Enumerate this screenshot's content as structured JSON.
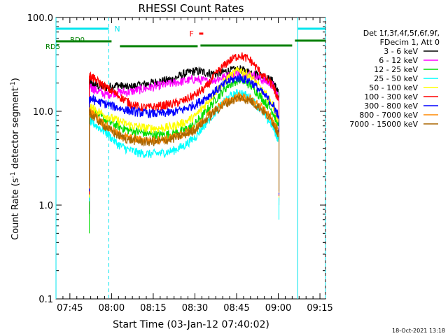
{
  "chart_data": {
    "type": "line",
    "title": "RHESSI Count Rates",
    "xlabel": "Start Time (03-Jan-12 07:40:02)",
    "ylabel_parts": [
      "Count Rate (s",
      "-1",
      " detector segment",
      "-1",
      ")"
    ],
    "yscale": "log",
    "ylim": [
      0.1,
      100
    ],
    "y_ticks": [
      {
        "value": 100,
        "label": "100.0"
      },
      {
        "value": 10,
        "label": "10.0"
      },
      {
        "value": 1,
        "label": "1.0"
      },
      {
        "value": 0.1,
        "label": "0.1"
      }
    ],
    "xlim_minutes_after_0740": [
      0,
      97
    ],
    "x_ticks": [
      {
        "minutes": 5,
        "label": "07:45"
      },
      {
        "minutes": 20,
        "label": "08:00"
      },
      {
        "minutes": 35,
        "label": "08:15"
      },
      {
        "minutes": 50,
        "label": "08:30"
      },
      {
        "minutes": 65,
        "label": "08:45"
      },
      {
        "minutes": 80,
        "label": "09:00"
      },
      {
        "minutes": 95,
        "label": "09:15"
      }
    ],
    "legend_header": [
      "Det 1f,3f,4f,5f,6f,9f,",
      "FDecim 1, Att 0"
    ],
    "x_minutes": [
      12,
      14,
      18,
      22,
      26,
      30,
      34,
      38,
      42,
      46,
      50,
      54,
      58,
      62,
      66,
      70,
      74,
      78,
      80
    ],
    "series": [
      {
        "name": "3 - 6 keV",
        "color": "#000000",
        "values": [
          20,
          19,
          18,
          19,
          18,
          19,
          20,
          21,
          22,
          25,
          27,
          26,
          25,
          27,
          28,
          26,
          24,
          21,
          16
        ]
      },
      {
        "name": "6 - 12 keV",
        "color": "#ff00ff",
        "values": [
          18,
          17,
          15,
          16,
          16,
          17,
          18,
          19,
          20,
          21,
          22,
          21,
          22,
          24,
          26,
          25,
          22,
          19,
          14
        ]
      },
      {
        "name": "12 - 25 keV",
        "color": "#00dd00",
        "values": [
          10,
          9.5,
          8,
          7,
          6.3,
          6,
          5.7,
          5.6,
          5.8,
          6.3,
          7.3,
          10,
          14,
          19,
          22,
          19,
          14,
          10,
          7
        ]
      },
      {
        "name": "25 - 50 keV",
        "color": "#00ffff",
        "values": [
          8,
          7.2,
          6,
          4.5,
          3.9,
          3.6,
          3.5,
          3.6,
          3.8,
          4.3,
          5.3,
          7.5,
          10.5,
          14,
          16,
          14,
          10,
          7,
          5
        ]
      },
      {
        "name": "50 - 100 keV",
        "color": "#ffff00",
        "values": [
          11,
          10.5,
          9,
          8,
          7.2,
          6.8,
          6.6,
          6.6,
          6.9,
          7.6,
          8.8,
          12,
          17,
          23,
          28,
          24,
          17,
          12,
          8
        ]
      },
      {
        "name": "100 - 300 keV",
        "color": "#ff0000",
        "values": [
          24,
          22,
          18,
          15,
          12.5,
          11,
          11,
          11.5,
          12,
          13,
          15,
          18,
          26,
          34,
          40,
          35,
          25,
          19,
          13
        ]
      },
      {
        "name": "300 - 800 keV",
        "color": "#0000ff",
        "values": [
          14,
          13,
          12,
          11,
          10.2,
          9.7,
          9.5,
          9.5,
          9.8,
          10.5,
          11.8,
          14,
          17,
          21,
          23,
          21,
          16,
          12,
          9
        ]
      },
      {
        "name": "800 - 7000 keV",
        "color": "#ff8800",
        "values": [
          10,
          9,
          7,
          5.8,
          5.2,
          5,
          4.9,
          5,
          5.3,
          5.8,
          6.6,
          8.5,
          11,
          13,
          14.5,
          13.5,
          11,
          8,
          6
        ]
      },
      {
        "name": "7000 - 15000 keV",
        "color": "#aa6600",
        "values": [
          9.5,
          8.5,
          6.8,
          5.6,
          5,
          4.8,
          4.7,
          4.8,
          5.1,
          5.6,
          6.4,
          8.2,
          10.5,
          12.5,
          14,
          13,
          10.5,
          7.8,
          5.8
        ]
      }
    ],
    "annotations": {
      "night_label": "N",
      "night_intervals_minutes": [
        [
          0,
          19
        ],
        [
          87,
          97
        ]
      ],
      "flare_label": "F",
      "flare_interval_minutes": [
        48,
        53
      ],
      "decimation_labels": [
        "RD0",
        "RD5"
      ],
      "decimation_intervals_minutes": [
        [
          1,
          20
        ],
        [
          23,
          51
        ],
        [
          52,
          85
        ],
        [
          86,
          97
        ]
      ]
    },
    "timestamp": "18-Oct-2021 13:18"
  }
}
